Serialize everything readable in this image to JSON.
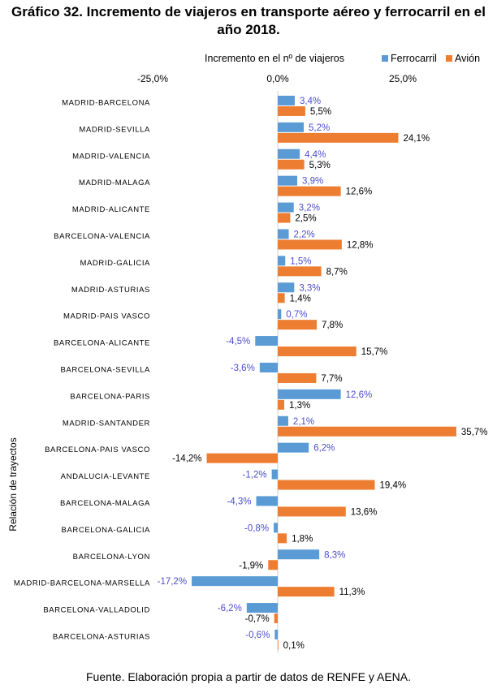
{
  "chart_data": {
    "type": "bar",
    "orientation": "horizontal",
    "title": [
      "Gráfico 32. Incremento de viajeros en transporte aéreo y ferrocarril en el",
      "año 2018."
    ],
    "xlabel": "Incremento en el nº de viajeros",
    "ylabel": "Relación de trayectos",
    "xlim": [
      -25,
      40
    ],
    "x_ticks": [
      -25,
      0,
      25
    ],
    "x_tick_labels": [
      "-25,0%",
      "0,0%",
      "25,0%"
    ],
    "x_axis_position": "top",
    "grid": false,
    "legend_position": "top-right",
    "categories": [
      "MADRID-BARCELONA",
      "MADRID-SEVILLA",
      "MADRID-VALENCIA",
      "MADRID-MALAGA",
      "MADRID-ALICANTE",
      "BARCELONA-VALENCIA",
      "MADRID-GALICIA",
      "MADRID-ASTURIAS",
      "MADRID-PAIS VASCO",
      "BARCELONA-ALICANTE",
      "BARCELONA-SEVILLA",
      "BARCELONA-PARIS",
      "MADRID-SANTANDER",
      "BARCELONA-PAIS VASCO",
      "ANDALUCIA-LEVANTE",
      "BARCELONA-MALAGA",
      "BARCELONA-GALICIA",
      "BARCELONA-LYON",
      "MADRID-BARCELONA-MARSELLA",
      "BARCELONA-VALLADOLID",
      "BARCELONA-ASTURIAS"
    ],
    "series": [
      {
        "name": "Ferrocarril",
        "color": "#5b9bd5",
        "label_color": "#4b4ecc",
        "values": [
          3.4,
          5.2,
          4.4,
          3.9,
          3.2,
          2.2,
          1.5,
          3.3,
          0.7,
          -4.5,
          -3.6,
          12.6,
          2.1,
          6.2,
          -1.2,
          -4.3,
          -0.8,
          8.3,
          -17.2,
          -6.2,
          -0.6
        ],
        "labels": [
          "3,4%",
          "5,2%",
          "4,4%",
          "3,9%",
          "3,2%",
          "2,2%",
          "1,5%",
          "3,3%",
          "0,7%",
          "-4,5%",
          "-3,6%",
          "12,6%",
          "2,1%",
          "6,2%",
          "-1,2%",
          "-4,3%",
          "-0,8%",
          "8,3%",
          "-17,2%",
          "-6,2%",
          "-0,6%"
        ]
      },
      {
        "name": "Avión",
        "color": "#ed7d31",
        "label_color": "#000000",
        "values": [
          5.5,
          24.1,
          5.3,
          12.6,
          2.5,
          12.8,
          8.7,
          1.4,
          7.8,
          15.7,
          7.7,
          1.3,
          35.7,
          -14.2,
          19.4,
          13.6,
          1.8,
          -1.9,
          11.3,
          -0.7,
          0.1
        ],
        "labels": [
          "5,5%",
          "24,1%",
          "5,3%",
          "12,6%",
          "2,5%",
          "12,8%",
          "8,7%",
          "1,4%",
          "7,8%",
          "15,7%",
          "7,7%",
          "1,3%",
          "35,7%",
          "-14,2%",
          "19,4%",
          "13,6%",
          "1,8%",
          "-1,9%",
          "11,3%",
          "-0,7%",
          "0,1%"
        ]
      }
    ],
    "source": "Fuente. Elaboración propia a partir de datos de RENFE y AENA."
  }
}
